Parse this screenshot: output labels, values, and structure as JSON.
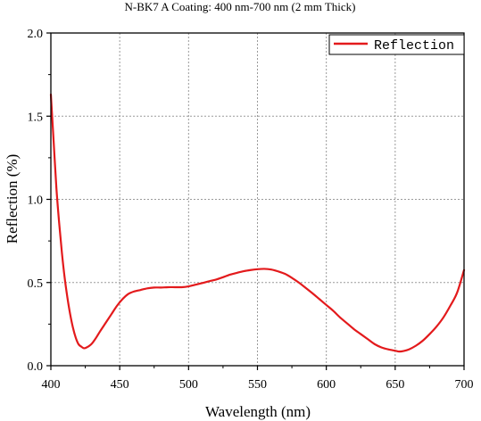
{
  "chart_data": {
    "type": "line",
    "title": "N-BK7 A Coating: 400 nm-700 nm (2 mm Thick)",
    "xlabel": "Wavelength (nm)",
    "ylabel": "Reflection (%)",
    "xlim": [
      400,
      700
    ],
    "ylim": [
      0.0,
      2.0
    ],
    "x_ticks": [
      "400",
      "450",
      "500",
      "550",
      "600",
      "650",
      "700"
    ],
    "y_ticks": [
      "0.0",
      "0.5",
      "1.0",
      "1.5",
      "2.0"
    ],
    "grid": true,
    "legend_position": "top-right",
    "colors": {
      "series": "#e31a1c",
      "axis": "#000000",
      "grid": "#9a9a9a"
    },
    "series": [
      {
        "name": "Reflection",
        "points": [
          [
            400,
            1.63
          ],
          [
            402,
            1.35
          ],
          [
            404,
            1.07
          ],
          [
            406,
            0.86
          ],
          [
            408,
            0.68
          ],
          [
            410,
            0.53
          ],
          [
            412,
            0.41
          ],
          [
            414,
            0.31
          ],
          [
            416,
            0.23
          ],
          [
            418,
            0.17
          ],
          [
            420,
            0.13
          ],
          [
            422,
            0.115
          ],
          [
            424,
            0.105
          ],
          [
            426,
            0.11
          ],
          [
            428,
            0.12
          ],
          [
            430,
            0.135
          ],
          [
            433,
            0.17
          ],
          [
            436,
            0.21
          ],
          [
            440,
            0.26
          ],
          [
            444,
            0.31
          ],
          [
            448,
            0.36
          ],
          [
            452,
            0.4
          ],
          [
            456,
            0.43
          ],
          [
            460,
            0.445
          ],
          [
            465,
            0.455
          ],
          [
            470,
            0.465
          ],
          [
            475,
            0.47
          ],
          [
            480,
            0.47
          ],
          [
            485,
            0.472
          ],
          [
            490,
            0.472
          ],
          [
            495,
            0.472
          ],
          [
            500,
            0.477
          ],
          [
            505,
            0.487
          ],
          [
            510,
            0.497
          ],
          [
            515,
            0.508
          ],
          [
            520,
            0.518
          ],
          [
            525,
            0.532
          ],
          [
            530,
            0.547
          ],
          [
            535,
            0.558
          ],
          [
            540,
            0.568
          ],
          [
            545,
            0.575
          ],
          [
            550,
            0.58
          ],
          [
            555,
            0.582
          ],
          [
            560,
            0.578
          ],
          [
            565,
            0.567
          ],
          [
            570,
            0.552
          ],
          [
            575,
            0.528
          ],
          [
            580,
            0.5
          ],
          [
            585,
            0.468
          ],
          [
            590,
            0.435
          ],
          [
            595,
            0.4
          ],
          [
            600,
            0.365
          ],
          [
            605,
            0.33
          ],
          [
            610,
            0.29
          ],
          [
            615,
            0.255
          ],
          [
            620,
            0.22
          ],
          [
            625,
            0.19
          ],
          [
            630,
            0.16
          ],
          [
            635,
            0.13
          ],
          [
            640,
            0.11
          ],
          [
            645,
            0.098
          ],
          [
            650,
            0.09
          ],
          [
            653,
            0.085
          ],
          [
            656,
            0.088
          ],
          [
            660,
            0.098
          ],
          [
            665,
            0.12
          ],
          [
            670,
            0.15
          ],
          [
            675,
            0.19
          ],
          [
            680,
            0.235
          ],
          [
            685,
            0.29
          ],
          [
            690,
            0.36
          ],
          [
            695,
            0.44
          ],
          [
            700,
            0.575
          ]
        ]
      }
    ]
  }
}
